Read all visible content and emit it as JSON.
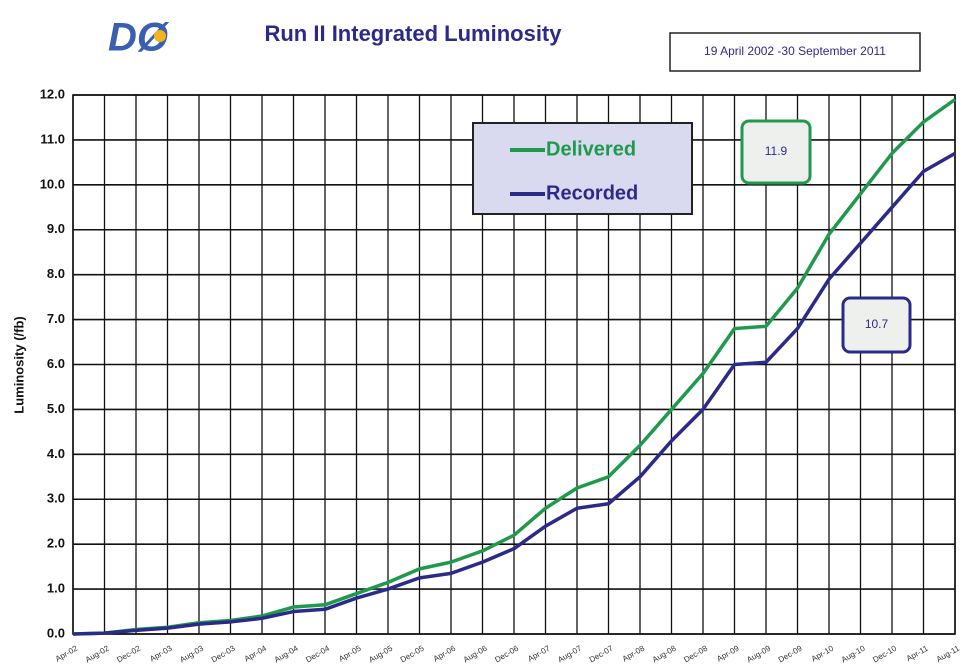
{
  "chart_data": {
    "type": "line",
    "logo": "DØ",
    "title": "Run II Integrated Luminosity",
    "subtitle": "19 April 2002 -30 September 2011",
    "y_label": "Luminosity (/fb)",
    "categories": [
      "Apr-02",
      "Aug-02",
      "Dec-02",
      "Apr-03",
      "Aug-03",
      "Dec-03",
      "Apr-04",
      "Aug-04",
      "Dec-04",
      "Apr-05",
      "Aug-05",
      "Dec-05",
      "Apr-06",
      "Aug-06",
      "Dec-06",
      "Apr-07",
      "Aug-07",
      "Dec-07",
      "Apr-08",
      "Aug-08",
      "Dec-08",
      "Apr-09",
      "Aug-09",
      "Dec-09",
      "Apr-10",
      "Aug-10",
      "Dec-10",
      "Apr-11",
      "Aug-11"
    ],
    "series": [
      {
        "name": "Delivered",
        "color": "#1f9a4c",
        "values": [
          0,
          0.02,
          0.1,
          0.15,
          0.25,
          0.3,
          0.4,
          0.6,
          0.65,
          0.9,
          1.15,
          1.45,
          1.6,
          1.85,
          2.2,
          2.8,
          3.25,
          3.5,
          4.2,
          5.0,
          5.8,
          6.8,
          6.85,
          7.7,
          8.9,
          9.8,
          10.7,
          11.4,
          11.9
        ]
      },
      {
        "name": "Recorded",
        "color": "#2b2a8a",
        "values": [
          0,
          0.02,
          0.08,
          0.13,
          0.22,
          0.27,
          0.35,
          0.5,
          0.55,
          0.8,
          1.0,
          1.25,
          1.35,
          1.6,
          1.9,
          2.4,
          2.8,
          2.9,
          3.5,
          4.3,
          5.0,
          6.0,
          6.05,
          6.8,
          7.9,
          8.7,
          9.5,
          10.3,
          10.7
        ]
      }
    ],
    "ylim": [
      0,
      12
    ],
    "yticks": [
      {
        "value": 0,
        "label": "0.0"
      },
      {
        "value": 1,
        "label": "1.0"
      },
      {
        "value": 2,
        "label": "2.0"
      },
      {
        "value": 3,
        "label": "3.0"
      },
      {
        "value": 4,
        "label": "4.0"
      },
      {
        "value": 5,
        "label": "5.0"
      },
      {
        "value": 6,
        "label": "6.0"
      },
      {
        "value": 7,
        "label": "7.0"
      },
      {
        "value": 8,
        "label": "8.0"
      },
      {
        "value": 9,
        "label": "9.0"
      },
      {
        "value": 10,
        "label": "10.0"
      },
      {
        "value": 11,
        "label": "11.0"
      },
      {
        "value": 12,
        "label": "12.0"
      }
    ],
    "grid": true
  }
}
